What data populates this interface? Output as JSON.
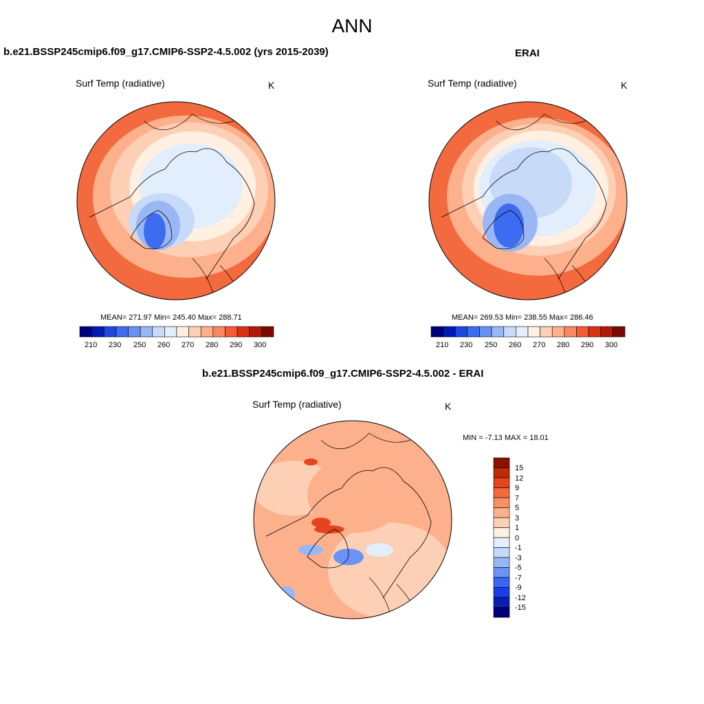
{
  "figure": {
    "title": "ANN"
  },
  "panels": {
    "model": {
      "title": "b.e21.BSSP245cmip6.f09_g17.CMIP6-SSP2-4.5.002 (yrs 2015-2039)",
      "variable": "Surf Temp (radiative)",
      "units": "K",
      "stats": "MEAN= 271.97  Min= 245.40  Max= 288.71"
    },
    "obs": {
      "title": "ERAI",
      "variable": "Surf Temp (radiative)",
      "units": "K",
      "stats": "MEAN= 269.53  Min= 238.55  Max= 286.46"
    },
    "diff": {
      "title": "b.e21.BSSP245cmip6.f09_g17.CMIP6-SSP2-4.5.002 - ERAI",
      "variable": "Surf Temp (radiative)",
      "units": "K",
      "stats": "MIN =  -7.13 MAX =  18.01"
    }
  },
  "colorbars": {
    "absolute": {
      "colors": [
        "#00007a",
        "#0019b4",
        "#1f47e0",
        "#3d6cf0",
        "#6692f2",
        "#9ab7f5",
        "#c7daf8",
        "#e2eefc",
        "#fff0e2",
        "#fdd0b5",
        "#fcb08c",
        "#f9875f",
        "#f45c36",
        "#db3312",
        "#b01b06",
        "#7a0a00"
      ],
      "ticks": [
        "210",
        "230",
        "250",
        "260",
        "270",
        "280",
        "290",
        "300"
      ]
    },
    "difference": {
      "colors": [
        "#00007a",
        "#0a1eb4",
        "#1a3ee6",
        "#3b66f5",
        "#6b92f5",
        "#98b6f5",
        "#c4d8f8",
        "#e4eefc",
        "#fff0e2",
        "#fdd0b5",
        "#fcb08c",
        "#f98f64",
        "#f26a3e",
        "#e5451c",
        "#c02a06",
        "#8c1000"
      ],
      "ticks": [
        "15",
        "12",
        "9",
        "7",
        "5",
        "3",
        "1",
        "0",
        "-1",
        "-3",
        "-5",
        "-7",
        "-9",
        "-12",
        "-15"
      ]
    }
  },
  "map_colors": {
    "outer_warm": "#f26a3e",
    "mid_warm": "#fcb08c",
    "light_warm": "#fdd0b5",
    "near_zero": "#fff0e2",
    "cool_light": "#e2eefc",
    "cool": "#c7daf8",
    "cool_mid": "#9ab7f5",
    "cold": "#3d6cf0",
    "diff_base": "#fcb08c",
    "diff_hot": "#e5451c",
    "diff_cool": "#6b92f5"
  }
}
